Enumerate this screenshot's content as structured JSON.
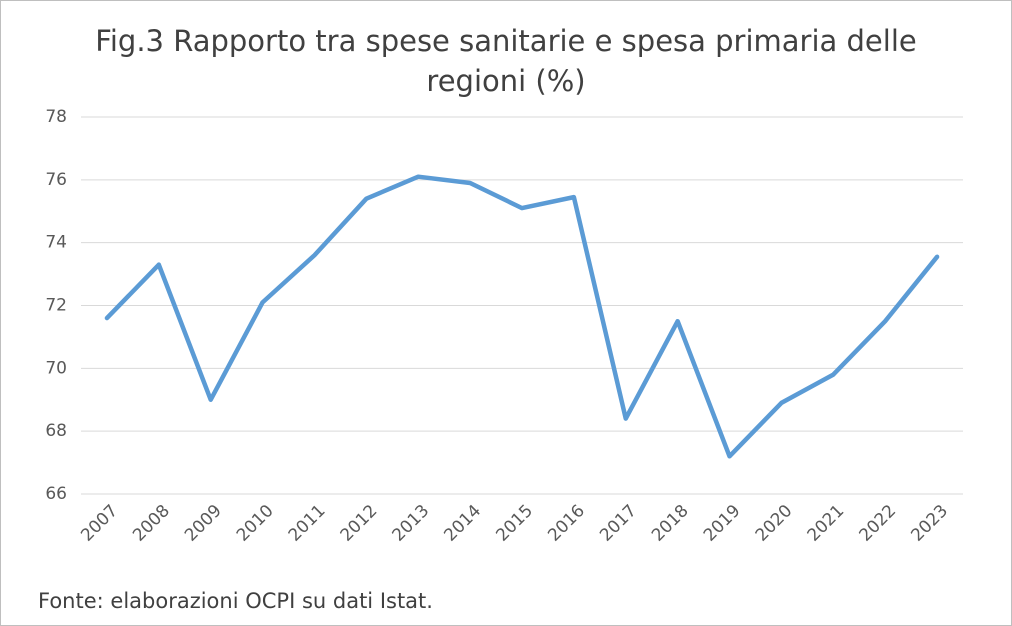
{
  "chart_data": {
    "type": "line",
    "title": "Fig.3 Rapporto tra spese sanitarie e spesa primaria delle regioni (%)",
    "source": "Fonte: elaborazioni OCPI su dati Istat.",
    "categories": [
      "2007",
      "2008",
      "2009",
      "2010",
      "2011",
      "2012",
      "2013",
      "2014",
      "2015",
      "2016",
      "2017",
      "2018",
      "2019",
      "2020",
      "2021",
      "2022",
      "2023"
    ],
    "values": [
      71.6,
      73.3,
      69.0,
      72.1,
      73.6,
      75.4,
      76.1,
      75.9,
      75.1,
      75.45,
      68.4,
      71.5,
      67.2,
      68.9,
      69.8,
      71.5,
      73.55
    ],
    "color": "#5b9bd5",
    "ylim": [
      66,
      78
    ],
    "yticks": [
      66,
      68,
      70,
      72,
      74,
      76,
      78
    ],
    "grid": true
  }
}
